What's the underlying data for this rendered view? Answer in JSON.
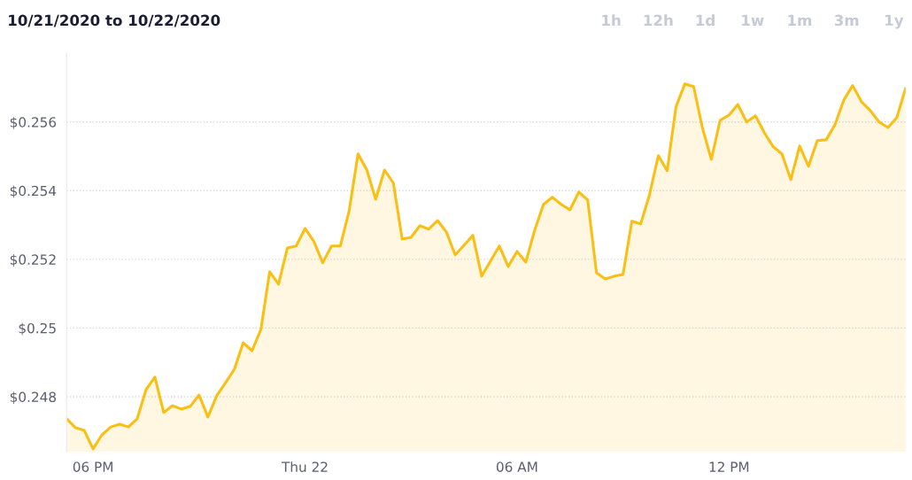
{
  "chart_data": {
    "type": "area",
    "title": "10/21/2020 to 10/22/2020",
    "annotations": [
      "1h",
      "12h",
      "1d",
      "1w",
      "1m",
      "3m",
      "1y"
    ],
    "series": [
      {
        "color": "#fbbf14",
        "x": [
          "2020-10-21T17:15",
          "2020-10-21T17:30",
          "2020-10-21T17:45",
          "2020-10-21T18:00",
          "2020-10-21T18:15",
          "2020-10-21T18:30",
          "2020-10-21T18:45",
          "2020-10-21T19:00",
          "2020-10-21T19:15",
          "2020-10-21T19:30",
          "2020-10-21T19:45",
          "2020-10-21T20:00",
          "2020-10-21T20:15",
          "2020-10-21T20:30",
          "2020-10-21T20:45",
          "2020-10-21T21:00",
          "2020-10-21T21:15",
          "2020-10-21T21:30",
          "2020-10-21T21:45",
          "2020-10-21T22:00",
          "2020-10-21T22:15",
          "2020-10-21T22:30",
          "2020-10-21T22:45",
          "2020-10-21T23:00",
          "2020-10-21T23:15",
          "2020-10-21T23:30",
          "2020-10-21T23:45",
          "2020-10-22T00:00",
          "2020-10-22T00:15",
          "2020-10-22T00:30",
          "2020-10-22T00:45",
          "2020-10-22T01:00",
          "2020-10-22T01:15",
          "2020-10-22T01:30",
          "2020-10-22T01:45",
          "2020-10-22T02:00",
          "2020-10-22T02:15",
          "2020-10-22T02:30",
          "2020-10-22T02:45",
          "2020-10-22T03:00",
          "2020-10-22T03:15",
          "2020-10-22T03:30",
          "2020-10-22T03:45",
          "2020-10-22T04:00",
          "2020-10-22T04:15",
          "2020-10-22T04:30",
          "2020-10-22T04:45",
          "2020-10-22T05:00",
          "2020-10-22T05:15",
          "2020-10-22T05:30",
          "2020-10-22T05:45",
          "2020-10-22T06:00",
          "2020-10-22T06:15",
          "2020-10-22T06:30",
          "2020-10-22T06:45",
          "2020-10-22T07:00",
          "2020-10-22T07:15",
          "2020-10-22T07:30",
          "2020-10-22T07:45",
          "2020-10-22T08:00",
          "2020-10-22T08:15",
          "2020-10-22T08:30",
          "2020-10-22T08:45",
          "2020-10-22T09:00",
          "2020-10-22T09:15",
          "2020-10-22T09:30",
          "2020-10-22T09:45",
          "2020-10-22T10:00",
          "2020-10-22T10:15",
          "2020-10-22T10:30",
          "2020-10-22T10:45",
          "2020-10-22T11:00",
          "2020-10-22T11:15",
          "2020-10-22T11:30",
          "2020-10-22T11:45",
          "2020-10-22T12:00",
          "2020-10-22T12:15",
          "2020-10-22T12:30",
          "2020-10-22T12:45",
          "2020-10-22T13:00",
          "2020-10-22T13:15",
          "2020-10-22T13:30",
          "2020-10-22T13:45",
          "2020-10-22T14:00",
          "2020-10-22T14:15",
          "2020-10-22T14:30",
          "2020-10-22T14:45",
          "2020-10-22T15:00",
          "2020-10-22T15:15",
          "2020-10-22T15:30",
          "2020-10-22T15:45",
          "2020-10-22T16:00",
          "2020-10-22T16:15",
          "2020-10-22T16:30",
          "2020-10-22T16:45",
          "2020-10-22T17:00"
        ],
        "values": [
          0.24736,
          0.2471,
          0.24702,
          0.24648,
          0.24689,
          0.24712,
          0.2472,
          0.24712,
          0.24736,
          0.24821,
          0.24857,
          0.24754,
          0.24774,
          0.24764,
          0.24772,
          0.24805,
          0.24741,
          0.24803,
          0.24841,
          0.2488,
          0.24957,
          0.24934,
          0.24996,
          0.25164,
          0.25128,
          0.25233,
          0.25239,
          0.2529,
          0.25252,
          0.2519,
          0.25239,
          0.25239,
          0.25342,
          0.25507,
          0.2546,
          0.25375,
          0.2546,
          0.25422,
          0.25259,
          0.25264,
          0.25298,
          0.25288,
          0.25313,
          0.2528,
          0.25213,
          0.25241,
          0.2527,
          0.25151,
          0.25195,
          0.25239,
          0.25179,
          0.25223,
          0.25192,
          0.25285,
          0.2536,
          0.25381,
          0.2536,
          0.25344,
          0.25396,
          0.25373,
          0.25161,
          0.25143,
          0.25151,
          0.25156,
          0.25311,
          0.25303,
          0.25388,
          0.25502,
          0.25458,
          0.25644,
          0.25711,
          0.25703,
          0.25582,
          0.25491,
          0.25605,
          0.2562,
          0.25651,
          0.256,
          0.25618,
          0.25569,
          0.25528,
          0.25507,
          0.25432,
          0.2553,
          0.25471,
          0.25546,
          0.25548,
          0.25592,
          0.25664,
          0.25706,
          0.25659,
          0.25633,
          0.256,
          0.25584,
          0.25613,
          0.25698
        ]
      }
    ],
    "xlim": [
      "2020-10-21T17:15",
      "2020-10-22T17:00"
    ],
    "xticks": [
      {
        "value": "2020-10-21T18:00",
        "label": "06 PM"
      },
      {
        "value": "2020-10-22T00:00",
        "label": "Thu 22"
      },
      {
        "value": "2020-10-22T06:00",
        "label": "06 AM"
      },
      {
        "value": "2020-10-22T12:00",
        "label": "12 PM"
      }
    ],
    "ylim": [
      0.2464,
      0.258
    ],
    "yticks": [
      {
        "value": 0.248,
        "label": "$0.248"
      },
      {
        "value": 0.25,
        "label": "$0.25"
      },
      {
        "value": 0.252,
        "label": "$0.252"
      },
      {
        "value": 0.254,
        "label": "$0.254"
      },
      {
        "value": 0.256,
        "label": "$0.256"
      }
    ],
    "grid": "y",
    "legend": false
  }
}
